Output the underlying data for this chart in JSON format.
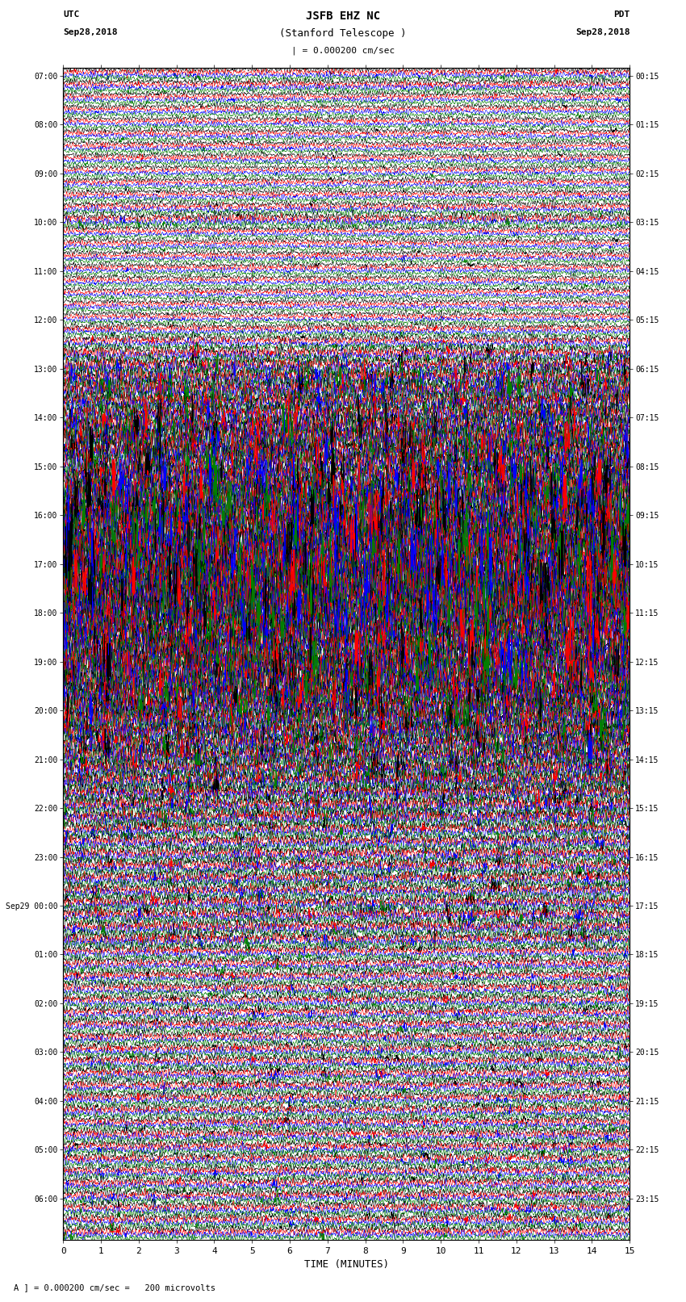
{
  "title_line1": "JSFB EHZ NC",
  "title_line2": "(Stanford Telescope )",
  "scale_label": "| = 0.000200 cm/sec",
  "left_header_line1": "UTC",
  "left_header_line2": "Sep28,2018",
  "right_header_line1": "PDT",
  "right_header_line2": "Sep28,2018",
  "bottom_label": "TIME (MINUTES)",
  "footer": "A ] = 0.000200 cm/sec =   200 microvolts",
  "num_rows": 96,
  "traces_per_row": 4,
  "colors": [
    "black",
    "red",
    "blue",
    "green"
  ],
  "x_min": 0,
  "x_max": 15,
  "fig_width": 8.5,
  "fig_height": 16.13,
  "bg_color": "white",
  "grid_color": "#888888",
  "left_time_labels": [
    "07:00",
    "",
    "",
    "",
    "08:00",
    "",
    "",
    "",
    "09:00",
    "",
    "",
    "",
    "10:00",
    "",
    "",
    "",
    "11:00",
    "",
    "",
    "",
    "12:00",
    "",
    "",
    "",
    "13:00",
    "",
    "",
    "",
    "14:00",
    "",
    "",
    "",
    "15:00",
    "",
    "",
    "",
    "16:00",
    "",
    "",
    "",
    "17:00",
    "",
    "",
    "",
    "18:00",
    "",
    "",
    "",
    "19:00",
    "",
    "",
    "",
    "20:00",
    "",
    "",
    "",
    "21:00",
    "",
    "",
    "",
    "22:00",
    "",
    "",
    "",
    "23:00",
    "",
    "",
    "",
    "Sep29 00:00",
    "",
    "",
    "",
    "01:00",
    "",
    "",
    "",
    "02:00",
    "",
    "",
    "",
    "03:00",
    "",
    "",
    "",
    "04:00",
    "",
    "",
    "",
    "05:00",
    "",
    "",
    "",
    "06:00",
    "",
    "",
    ""
  ],
  "right_time_labels": [
    "00:15",
    "",
    "",
    "",
    "01:15",
    "",
    "",
    "",
    "02:15",
    "",
    "",
    "",
    "03:15",
    "",
    "",
    "",
    "04:15",
    "",
    "",
    "",
    "05:15",
    "",
    "",
    "",
    "06:15",
    "",
    "",
    "",
    "07:15",
    "",
    "",
    "",
    "08:15",
    "",
    "",
    "",
    "09:15",
    "",
    "",
    "",
    "10:15",
    "",
    "",
    "",
    "11:15",
    "",
    "",
    "",
    "12:15",
    "",
    "",
    "",
    "13:15",
    "",
    "",
    "",
    "14:15",
    "",
    "",
    "",
    "15:15",
    "",
    "",
    "",
    "16:15",
    "",
    "",
    "",
    "17:15",
    "",
    "",
    "",
    "18:15",
    "",
    "",
    "",
    "19:15",
    "",
    "",
    "",
    "20:15",
    "",
    "",
    "",
    "21:15",
    "",
    "",
    "",
    "22:15",
    "",
    "",
    "",
    "23:15",
    "",
    "",
    ""
  ],
  "amplitude_by_row": [
    0.12,
    0.12,
    0.1,
    0.1,
    0.1,
    0.1,
    0.1,
    0.1,
    0.1,
    0.1,
    0.1,
    0.12,
    0.15,
    0.1,
    0.1,
    0.1,
    0.1,
    0.1,
    0.1,
    0.1,
    0.1,
    0.12,
    0.15,
    0.2,
    0.25,
    0.3,
    0.35,
    0.3,
    0.35,
    0.4,
    0.45,
    0.4,
    0.45,
    0.4,
    0.5,
    0.55,
    0.5,
    0.55,
    0.6,
    0.65,
    0.6,
    0.65,
    0.7,
    0.65,
    0.6,
    0.55,
    0.5,
    0.5,
    0.5,
    0.55,
    0.5,
    0.45,
    0.4,
    0.4,
    0.35,
    0.35,
    0.35,
    0.3,
    0.3,
    0.25,
    0.25,
    0.25,
    0.2,
    0.2,
    0.2,
    0.2,
    0.2,
    0.2,
    0.2,
    0.2,
    0.2,
    0.2,
    0.15,
    0.15,
    0.15,
    0.15,
    0.15,
    0.15,
    0.15,
    0.15,
    0.15,
    0.15,
    0.15,
    0.15,
    0.15,
    0.15,
    0.15,
    0.15,
    0.15,
    0.15,
    0.15,
    0.15,
    0.15,
    0.15,
    0.15,
    0.15
  ]
}
